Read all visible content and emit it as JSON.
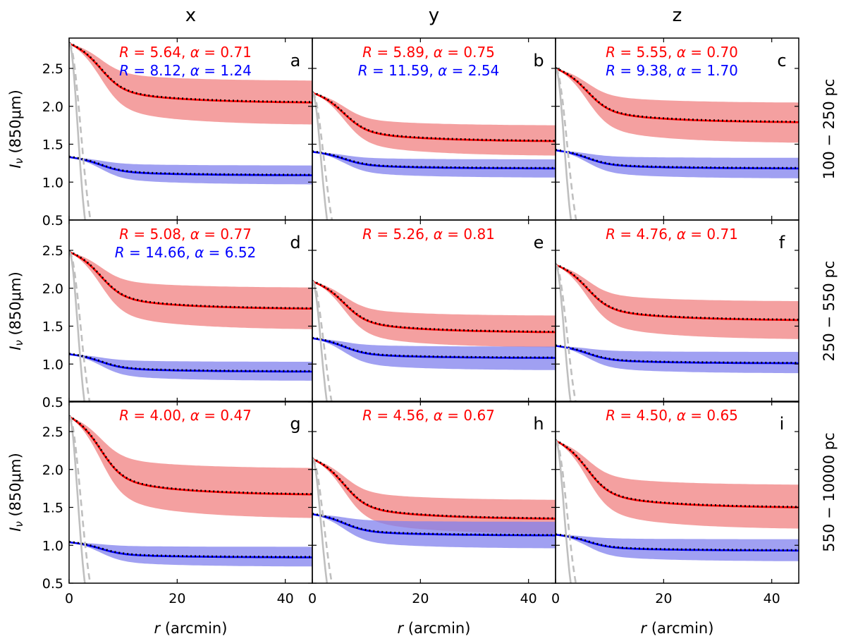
{
  "figure": {
    "column_titles": [
      "x",
      "y",
      "z"
    ],
    "row_titles": [
      "100 − 250 pc",
      "250 − 550 pc",
      "550 − 10000 pc"
    ],
    "ylabel_symbol": "I",
    "ylabel_subscript": "ν",
    "ylabel_units": " (850μm)",
    "xlabel_symbol": "r",
    "xlabel_units": " (arcmin)",
    "colors": {
      "red_fill": "#f08080",
      "blue_fill": "#8080ee",
      "red_line": "#ff0000",
      "blue_line": "#0000ff",
      "grey": "#bfbfbf",
      "dotted": "#000000"
    }
  },
  "chart_data": [
    {
      "type": "line",
      "panel": "a",
      "column": "x",
      "row": "100 − 250 pc",
      "xlim": [
        0,
        45
      ],
      "ylim": [
        0.5,
        2.9
      ],
      "xticks": [
        0,
        20,
        40
      ],
      "yticks": [
        0.5,
        1.0,
        1.5,
        2.0,
        2.5
      ],
      "series": [
        {
          "name": "red",
          "start": 2.83,
          "end": 2.05,
          "band_low_end": 1.76,
          "band_high_end": 2.34
        },
        {
          "name": "blue",
          "start": 1.33,
          "end": 1.09,
          "band_low_end": 0.97,
          "band_high_end": 1.22
        }
      ],
      "annotations": [
        {
          "color": "red",
          "R": "5.64",
          "alpha": "0.71"
        },
        {
          "color": "blue",
          "R": "8.12",
          "alpha": "1.24"
        }
      ]
    },
    {
      "type": "line",
      "panel": "b",
      "column": "y",
      "row": "100 − 250 pc",
      "xlim": [
        0,
        45
      ],
      "ylim": [
        0.5,
        2.9
      ],
      "xticks": [
        0,
        20,
        40
      ],
      "yticks": [
        0.5,
        1.0,
        1.5,
        2.0,
        2.5
      ],
      "series": [
        {
          "name": "red",
          "start": 2.18,
          "end": 1.54,
          "band_low_end": 1.35,
          "band_high_end": 1.75
        },
        {
          "name": "blue",
          "start": 1.4,
          "end": 1.18,
          "band_low_end": 1.06,
          "band_high_end": 1.3
        }
      ],
      "annotations": [
        {
          "color": "red",
          "R": "5.89",
          "alpha": "0.75"
        },
        {
          "color": "blue",
          "R": "11.59",
          "alpha": "2.54"
        }
      ]
    },
    {
      "type": "line",
      "panel": "c",
      "column": "z",
      "row": "100 − 250 pc",
      "xlim": [
        0,
        45
      ],
      "ylim": [
        0.5,
        2.9
      ],
      "xticks": [
        0,
        20,
        40
      ],
      "yticks": [
        0.5,
        1.0,
        1.5,
        2.0,
        2.5
      ],
      "series": [
        {
          "name": "red",
          "start": 2.5,
          "end": 1.79,
          "band_low_end": 1.52,
          "band_high_end": 2.05
        },
        {
          "name": "blue",
          "start": 1.42,
          "end": 1.18,
          "band_low_end": 1.05,
          "band_high_end": 1.32
        }
      ],
      "annotations": [
        {
          "color": "red",
          "R": "5.55",
          "alpha": "0.70"
        },
        {
          "color": "blue",
          "R": "9.38",
          "alpha": "1.70"
        }
      ]
    },
    {
      "type": "line",
      "panel": "d",
      "column": "x",
      "row": "250 − 550 pc",
      "xlim": [
        0,
        45
      ],
      "ylim": [
        0.5,
        2.9
      ],
      "xticks": [
        0,
        20,
        40
      ],
      "yticks": [
        0.5,
        1.0,
        1.5,
        2.0,
        2.5
      ],
      "series": [
        {
          "name": "red",
          "start": 2.48,
          "end": 1.73,
          "band_low_end": 1.46,
          "band_high_end": 2.01
        },
        {
          "name": "blue",
          "start": 1.13,
          "end": 0.9,
          "band_low_end": 0.78,
          "band_high_end": 1.03
        }
      ],
      "annotations": [
        {
          "color": "red",
          "R": "5.08",
          "alpha": "0.77"
        },
        {
          "color": "blue",
          "R": "14.66",
          "alpha": "6.52"
        }
      ]
    },
    {
      "type": "line",
      "panel": "e",
      "column": "y",
      "row": "250 − 550 pc",
      "xlim": [
        0,
        45
      ],
      "ylim": [
        0.5,
        2.9
      ],
      "xticks": [
        0,
        20,
        40
      ],
      "yticks": [
        0.5,
        1.0,
        1.5,
        2.0,
        2.5
      ],
      "series": [
        {
          "name": "red",
          "start": 2.09,
          "end": 1.42,
          "band_low_end": 1.22,
          "band_high_end": 1.64
        },
        {
          "name": "blue",
          "start": 1.34,
          "end": 1.08,
          "band_low_end": 0.92,
          "band_high_end": 1.23
        }
      ],
      "annotations": [
        {
          "color": "red",
          "R": "5.26",
          "alpha": "0.81"
        }
      ]
    },
    {
      "type": "line",
      "panel": "f",
      "column": "z",
      "row": "250 − 550 pc",
      "xlim": [
        0,
        45
      ],
      "ylim": [
        0.5,
        2.9
      ],
      "xticks": [
        0,
        20,
        40
      ],
      "yticks": [
        0.5,
        1.0,
        1.5,
        2.0,
        2.5
      ],
      "series": [
        {
          "name": "red",
          "start": 2.31,
          "end": 1.58,
          "band_low_end": 1.33,
          "band_high_end": 1.83
        },
        {
          "name": "blue",
          "start": 1.24,
          "end": 1.01,
          "band_low_end": 0.88,
          "band_high_end": 1.16
        }
      ],
      "annotations": [
        {
          "color": "red",
          "R": "4.76",
          "alpha": "0.71"
        }
      ]
    },
    {
      "type": "line",
      "panel": "g",
      "column": "x",
      "row": "550 − 10000 pc",
      "xlim": [
        0,
        45
      ],
      "ylim": [
        0.5,
        2.9
      ],
      "xticks": [
        0,
        20,
        40
      ],
      "yticks": [
        0.5,
        1.0,
        1.5,
        2.0,
        2.5
      ],
      "series": [
        {
          "name": "red",
          "start": 2.7,
          "end": 1.67,
          "band_low_end": 1.36,
          "band_high_end": 2.02
        },
        {
          "name": "blue",
          "start": 1.04,
          "end": 0.84,
          "band_low_end": 0.72,
          "band_high_end": 0.98
        }
      ],
      "annotations": [
        {
          "color": "red",
          "R": "4.00",
          "alpha": "0.47"
        }
      ]
    },
    {
      "type": "line",
      "panel": "h",
      "column": "y",
      "row": "550 − 10000 pc",
      "xlim": [
        0,
        45
      ],
      "ylim": [
        0.5,
        2.9
      ],
      "xticks": [
        0,
        20,
        40
      ],
      "yticks": [
        0.5,
        1.0,
        1.5,
        2.0,
        2.5
      ],
      "series": [
        {
          "name": "red",
          "start": 2.14,
          "end": 1.35,
          "band_low_end": 1.15,
          "band_high_end": 1.6
        },
        {
          "name": "blue",
          "start": 1.41,
          "end": 1.13,
          "band_low_end": 0.96,
          "band_high_end": 1.31
        }
      ],
      "annotations": [
        {
          "color": "red",
          "R": "4.56",
          "alpha": "0.67"
        }
      ]
    },
    {
      "type": "line",
      "panel": "i",
      "column": "z",
      "row": "550 − 10000 pc",
      "xlim": [
        0,
        45
      ],
      "ylim": [
        0.5,
        2.9
      ],
      "xticks": [
        0,
        20,
        40
      ],
      "yticks": [
        0.5,
        1.0,
        1.5,
        2.0,
        2.5
      ],
      "series": [
        {
          "name": "red",
          "start": 2.38,
          "end": 1.5,
          "band_low_end": 1.22,
          "band_high_end": 1.8
        },
        {
          "name": "blue",
          "start": 1.14,
          "end": 0.93,
          "band_low_end": 0.79,
          "band_high_end": 1.08
        }
      ],
      "annotations": [
        {
          "color": "red",
          "R": "4.50",
          "alpha": "0.65"
        }
      ]
    }
  ]
}
